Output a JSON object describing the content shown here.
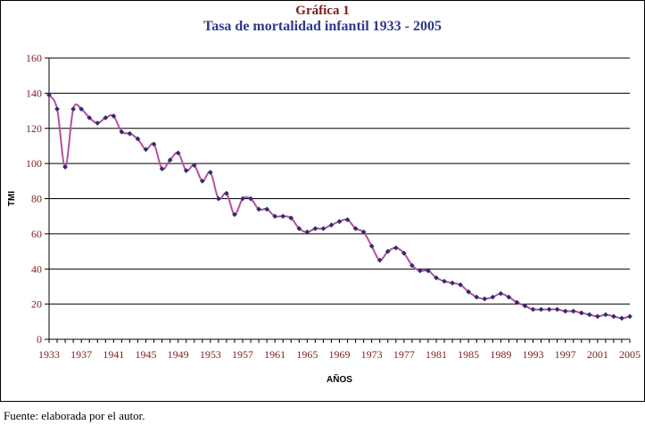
{
  "chart_data": {
    "type": "line",
    "title": "Gráfica 1",
    "subtitle": "Tasa de mortalidad infantil 1933 - 2005",
    "xlabel": "AÑOS",
    "ylabel": "TMI",
    "ylim": [
      0,
      160
    ],
    "yticks": [
      "0",
      "20",
      "40",
      "60",
      "80",
      "100",
      "120",
      "140",
      "160"
    ],
    "xticks": [
      "1933",
      "1937",
      "1941",
      "1945",
      "1949",
      "1953",
      "1957",
      "1961",
      "1965",
      "1969",
      "1973",
      "1977",
      "1981",
      "1985",
      "1989",
      "1993",
      "1997",
      "2001",
      "2005"
    ],
    "grid": true,
    "legend": "none",
    "line_color": "#b94fa0",
    "marker_color": "#2b2f6e",
    "x": [
      1933,
      1934,
      1935,
      1936,
      1937,
      1938,
      1939,
      1940,
      1941,
      1942,
      1943,
      1944,
      1945,
      1946,
      1947,
      1948,
      1949,
      1950,
      1951,
      1952,
      1953,
      1954,
      1955,
      1956,
      1957,
      1958,
      1959,
      1960,
      1961,
      1962,
      1963,
      1964,
      1965,
      1966,
      1967,
      1968,
      1969,
      1970,
      1971,
      1972,
      1973,
      1974,
      1975,
      1976,
      1977,
      1978,
      1979,
      1980,
      1981,
      1982,
      1983,
      1984,
      1985,
      1986,
      1987,
      1988,
      1989,
      1990,
      1991,
      1992,
      1993,
      1994,
      1995,
      1996,
      1997,
      1998,
      1999,
      2000,
      2001,
      2002,
      2003,
      2004,
      2005
    ],
    "series": [
      {
        "values": [
          139,
          131,
          98,
          131,
          131,
          126,
          123,
          126,
          127,
          118,
          117,
          114,
          108,
          111,
          97,
          102,
          106,
          96,
          99,
          90,
          95,
          80,
          83,
          71,
          80,
          80,
          74,
          74,
          70,
          70,
          69,
          63,
          61,
          63,
          63,
          65,
          67,
          68,
          63,
          61,
          53,
          45,
          50,
          52,
          49,
          42,
          39,
          39,
          35,
          33,
          32,
          31,
          27,
          24,
          23,
          24,
          26,
          24,
          21,
          19,
          17,
          17,
          17,
          17,
          16,
          16,
          15,
          14,
          13,
          14,
          13,
          12,
          13
        ]
      }
    ],
    "footer": "Fuente: elaborada por el autor."
  }
}
